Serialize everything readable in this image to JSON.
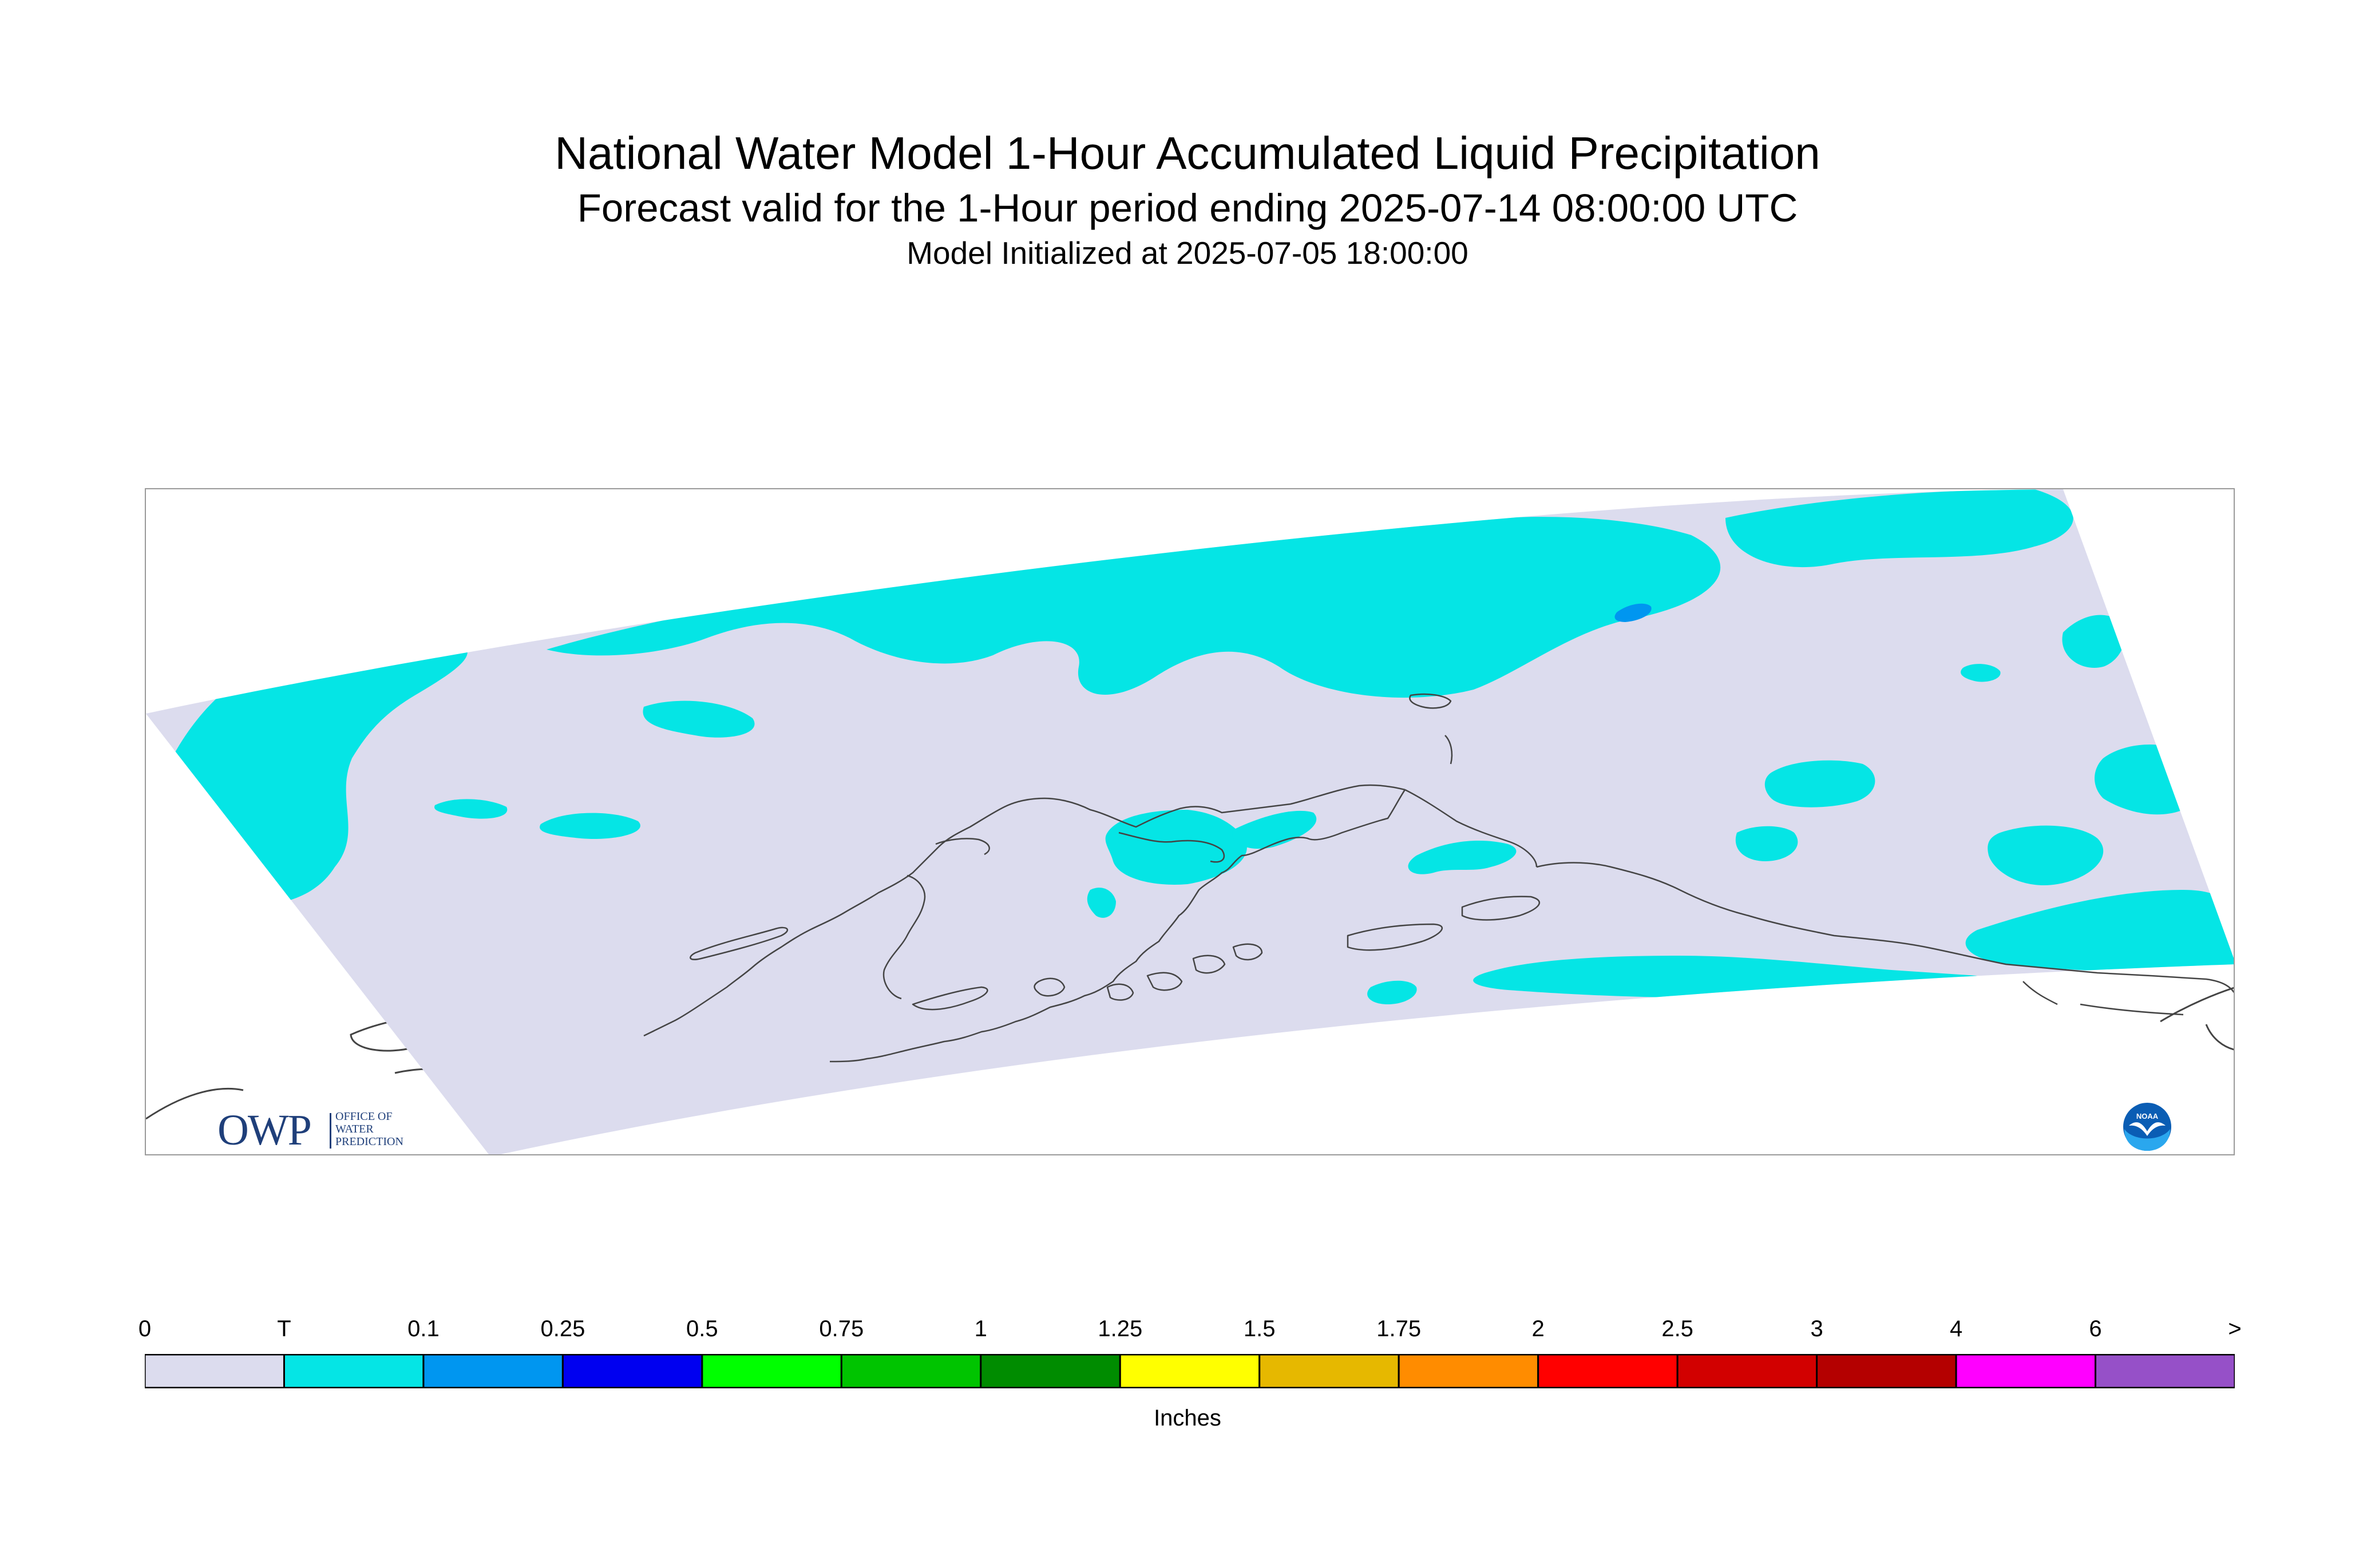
{
  "header": {
    "title": "National Water Model 1-Hour Accumulated Liquid Precipitation",
    "subtitle": "Forecast valid for the 1-Hour period ending 2025-07-14 08:00:00 UTC",
    "init": "Model Initialized at 2025-07-05 18:00:00"
  },
  "map": {
    "region": "Alaska",
    "domain_color": "#dcdcee",
    "precip_color": "#05e5e5",
    "heavier_precip_color": "#0096f0",
    "coastline_color": "#444444"
  },
  "logos": {
    "owp": {
      "mark": "OWP",
      "lines": [
        "OFFICE OF",
        "WATER",
        "PREDICTION"
      ],
      "color": "#1f3f7a"
    },
    "noaa": {
      "text": "NOAA",
      "icon": "noaa-seagull-icon"
    }
  },
  "legend": {
    "labels": [
      "0",
      "T",
      "0.1",
      "0.25",
      "0.5",
      "0.75",
      "1",
      "1.25",
      "1.5",
      "1.75",
      "2",
      "2.5",
      "3",
      "4",
      "6",
      ">"
    ],
    "colors": [
      "#dcdcee",
      "#05e5e5",
      "#0096f0",
      "#0000f0",
      "#00ff00",
      "#00c400",
      "#008c00",
      "#ffff00",
      "#e6b800",
      "#ff8c00",
      "#ff0000",
      "#d20000",
      "#b40000",
      "#ff00ff",
      "#9650c8"
    ],
    "units": "Inches"
  }
}
